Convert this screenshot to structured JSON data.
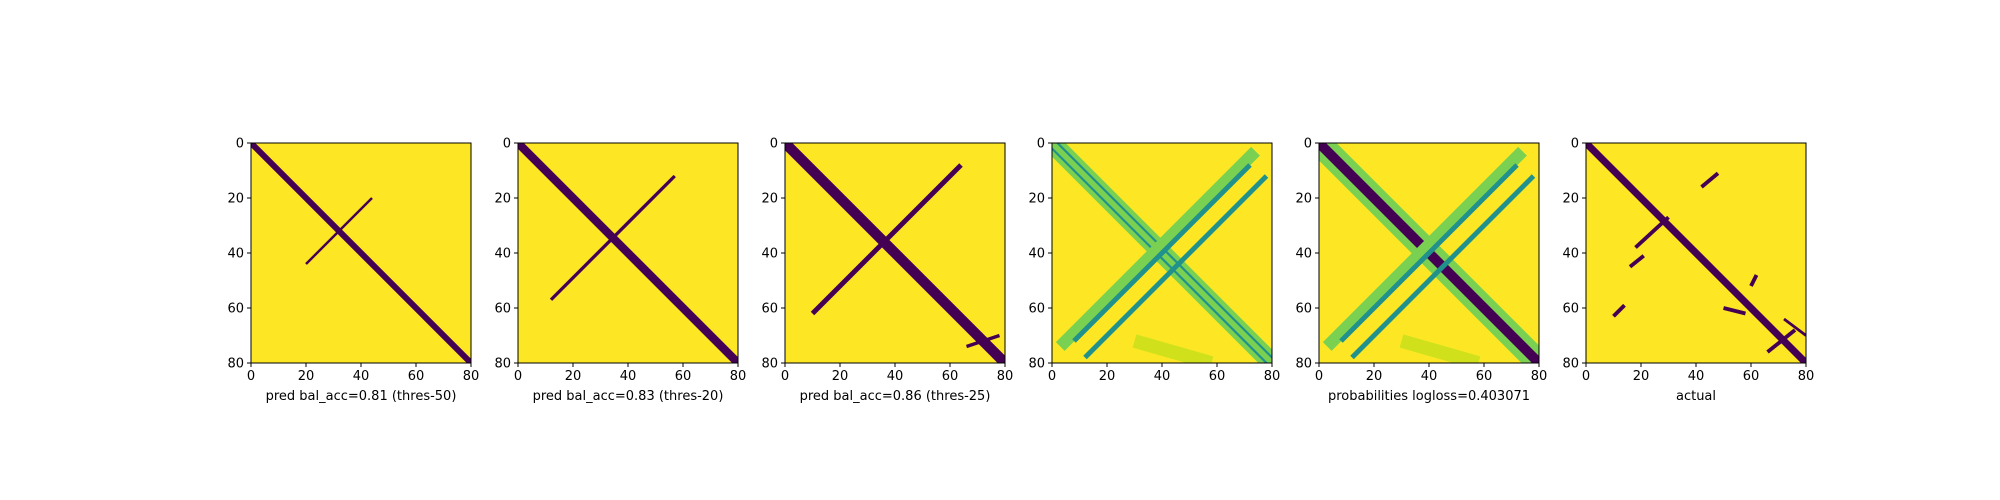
{
  "colors": {
    "background": "#fde725",
    "contact": "#440154",
    "mid_teal": "#21918c",
    "light_green": "#7ad151",
    "pale_green": "#d0e11c",
    "axis": "#000000"
  },
  "chart_data": [
    {
      "type": "heatmap",
      "xlabel": "pred bal_acc=0.81 (thres-50)",
      "xlim": [
        0,
        80
      ],
      "ylim": [
        80,
        0
      ],
      "xticks": [
        "0",
        "20",
        "40",
        "60",
        "80"
      ],
      "yticks": [
        "0",
        "20",
        "40",
        "60",
        "80"
      ],
      "marks": [
        {
          "from": [
            0,
            0
          ],
          "to": [
            80,
            80
          ],
          "width": 2.2,
          "color": "contact"
        },
        {
          "from": [
            20,
            44
          ],
          "to": [
            44,
            20
          ],
          "width": 0.9,
          "color": "contact"
        }
      ]
    },
    {
      "type": "heatmap",
      "xlabel": "pred bal_acc=0.83 (thres-20)",
      "xlim": [
        0,
        80
      ],
      "ylim": [
        80,
        0
      ],
      "xticks": [
        "0",
        "20",
        "40",
        "60",
        "80"
      ],
      "yticks": [
        "0",
        "20",
        "40",
        "60",
        "80"
      ],
      "marks": [
        {
          "from": [
            0,
            0
          ],
          "to": [
            80,
            80
          ],
          "width": 3.0,
          "color": "contact"
        },
        {
          "from": [
            12,
            57
          ],
          "to": [
            57,
            12
          ],
          "width": 1.2,
          "color": "contact"
        }
      ]
    },
    {
      "type": "heatmap",
      "xlabel": "pred bal_acc=0.86 (thres-25)",
      "xlim": [
        0,
        80
      ],
      "ylim": [
        80,
        0
      ],
      "xticks": [
        "0",
        "20",
        "40",
        "60",
        "80"
      ],
      "yticks": [
        "0",
        "20",
        "40",
        "60",
        "80"
      ],
      "marks": [
        {
          "from": [
            0,
            0
          ],
          "to": [
            80,
            80
          ],
          "width": 3.8,
          "color": "contact"
        },
        {
          "from": [
            10,
            62
          ],
          "to": [
            64,
            8
          ],
          "width": 1.8,
          "color": "contact"
        },
        {
          "from": [
            66,
            74
          ],
          "to": [
            78,
            70
          ],
          "width": 1.2,
          "color": "contact"
        }
      ]
    },
    {
      "type": "heatmap",
      "xlabel": "",
      "xlim": [
        0,
        80
      ],
      "ylim": [
        80,
        0
      ],
      "xticks": [
        "0",
        "20",
        "40",
        "60",
        "80"
      ],
      "yticks": [
        "0",
        "20",
        "40",
        "60",
        "80"
      ],
      "marks": [
        {
          "from": [
            0,
            0
          ],
          "to": [
            80,
            80
          ],
          "width": 7.0,
          "color": "light_green"
        },
        {
          "from": [
            1,
            -1
          ],
          "to": [
            81,
            79
          ],
          "width": 0.8,
          "color": "mid_teal"
        },
        {
          "from": [
            -1,
            1
          ],
          "to": [
            79,
            81
          ],
          "width": 0.8,
          "color": "mid_teal"
        },
        {
          "from": [
            3,
            74
          ],
          "to": [
            74,
            3
          ],
          "width": 4.5,
          "color": "light_green"
        },
        {
          "from": [
            8,
            72
          ],
          "to": [
            72,
            8
          ],
          "width": 1.8,
          "color": "mid_teal"
        },
        {
          "from": [
            12,
            78
          ],
          "to": [
            78,
            12
          ],
          "width": 1.8,
          "color": "mid_teal"
        },
        {
          "from": [
            30,
            72
          ],
          "to": [
            58,
            80
          ],
          "width": 5.0,
          "color": "pale_green"
        }
      ]
    },
    {
      "type": "heatmap",
      "xlabel": "probabilities logloss=0.403071",
      "xlim": [
        0,
        80
      ],
      "ylim": [
        80,
        0
      ],
      "xticks": [
        "0",
        "20",
        "40",
        "60",
        "80"
      ],
      "yticks": [
        "0",
        "20",
        "40",
        "60",
        "80"
      ],
      "marks": [
        {
          "from": [
            0,
            0
          ],
          "to": [
            80,
            80
          ],
          "width": 9.0,
          "color": "light_green"
        },
        {
          "from": [
            0,
            0
          ],
          "to": [
            80,
            80
          ],
          "width": 3.6,
          "color": "contact"
        },
        {
          "from": [
            3,
            74
          ],
          "to": [
            74,
            3
          ],
          "width": 4.5,
          "color": "light_green"
        },
        {
          "from": [
            8,
            72
          ],
          "to": [
            72,
            8
          ],
          "width": 1.8,
          "color": "mid_teal"
        },
        {
          "from": [
            12,
            78
          ],
          "to": [
            78,
            12
          ],
          "width": 1.8,
          "color": "mid_teal"
        },
        {
          "from": [
            30,
            72
          ],
          "to": [
            58,
            80
          ],
          "width": 5.0,
          "color": "pale_green"
        }
      ]
    },
    {
      "type": "heatmap",
      "xlabel": "actual",
      "xlim": [
        0,
        80
      ],
      "ylim": [
        80,
        0
      ],
      "xticks": [
        "0",
        "20",
        "40",
        "60",
        "80"
      ],
      "yticks": [
        "0",
        "20",
        "40",
        "60",
        "80"
      ],
      "marks": [
        {
          "from": [
            0,
            0
          ],
          "to": [
            80,
            80
          ],
          "width": 2.6,
          "color": "contact"
        },
        {
          "from": [
            18,
            38
          ],
          "to": [
            30,
            27
          ],
          "width": 1.4,
          "color": "contact"
        },
        {
          "from": [
            42,
            16
          ],
          "to": [
            48,
            11
          ],
          "width": 1.4,
          "color": "contact"
        },
        {
          "from": [
            16,
            45
          ],
          "to": [
            21,
            41
          ],
          "width": 1.4,
          "color": "contact"
        },
        {
          "from": [
            10,
            63
          ],
          "to": [
            14,
            59
          ],
          "width": 1.4,
          "color": "contact"
        },
        {
          "from": [
            60,
            52
          ],
          "to": [
            62,
            48
          ],
          "width": 1.4,
          "color": "contact"
        },
        {
          "from": [
            50,
            60
          ],
          "to": [
            58,
            62
          ],
          "width": 1.4,
          "color": "contact"
        },
        {
          "from": [
            66,
            76
          ],
          "to": [
            76,
            68
          ],
          "width": 1.4,
          "color": "contact"
        },
        {
          "from": [
            72,
            64
          ],
          "to": [
            80,
            70
          ],
          "width": 1.0,
          "color": "contact"
        }
      ]
    }
  ]
}
